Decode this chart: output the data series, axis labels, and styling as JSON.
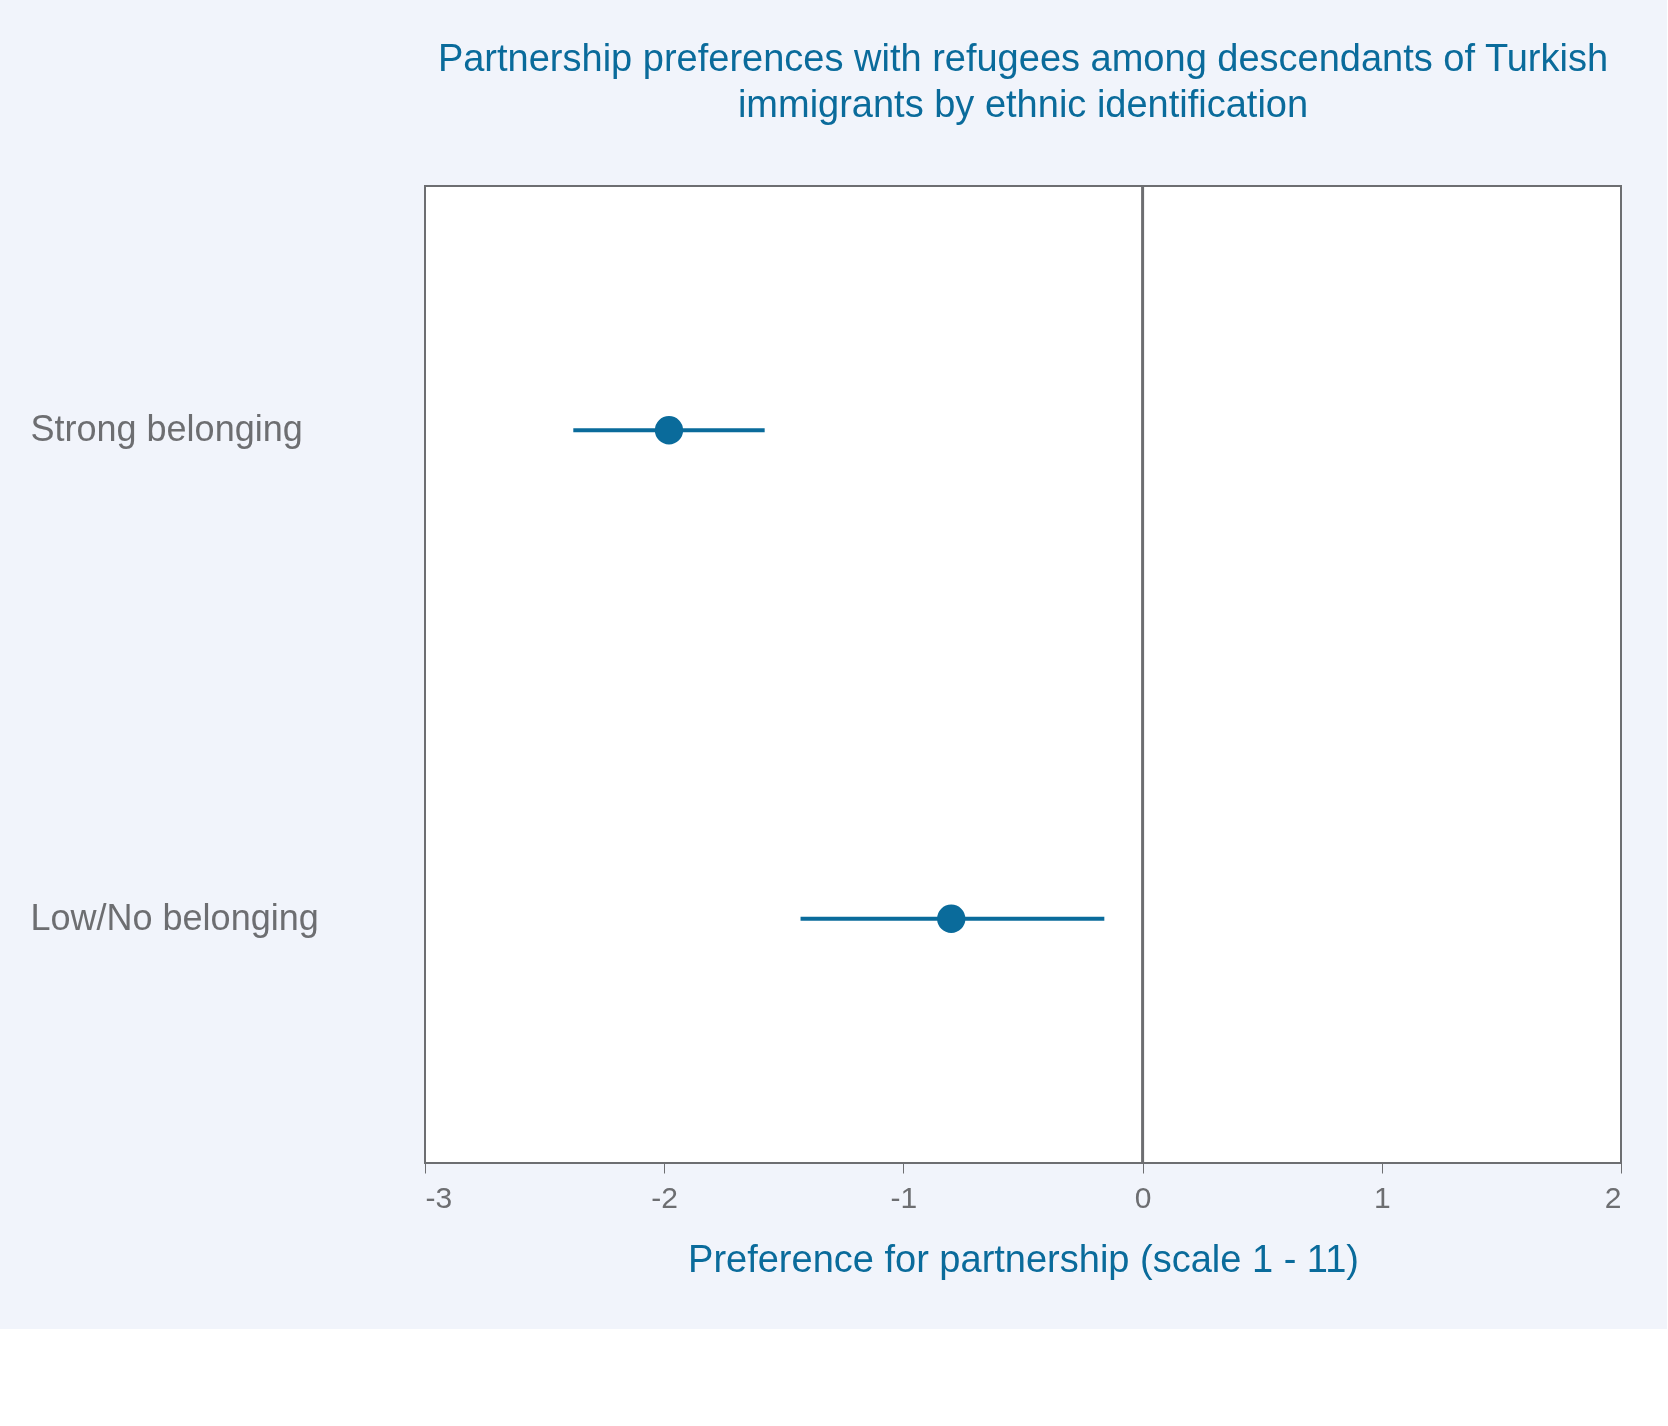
{
  "chart_data": {
    "type": "scatter",
    "orientation": "horizontal",
    "title": "Partnership preferences with refugees among descendants of Turkish immigrants by ethnic identification",
    "xlabel": "Preference for partnership (scale 1 - 11)",
    "categories": [
      "Strong belonging",
      "Low/No belonging"
    ],
    "series": [
      {
        "color": "#0a6b9b",
        "values": [
          -1.98,
          -0.8
        ],
        "errors": [
          [
            -2.38,
            -1.58
          ],
          [
            -1.43,
            -0.16
          ]
        ]
      }
    ],
    "xlim": [
      -3,
      2
    ],
    "xticks": [
      -3,
      -2,
      -1,
      0,
      1,
      2
    ],
    "ref_lines": [
      {
        "axis": "x",
        "value": 0,
        "color": "#6d6e71"
      }
    ],
    "marker": "circle",
    "grid": false
  }
}
